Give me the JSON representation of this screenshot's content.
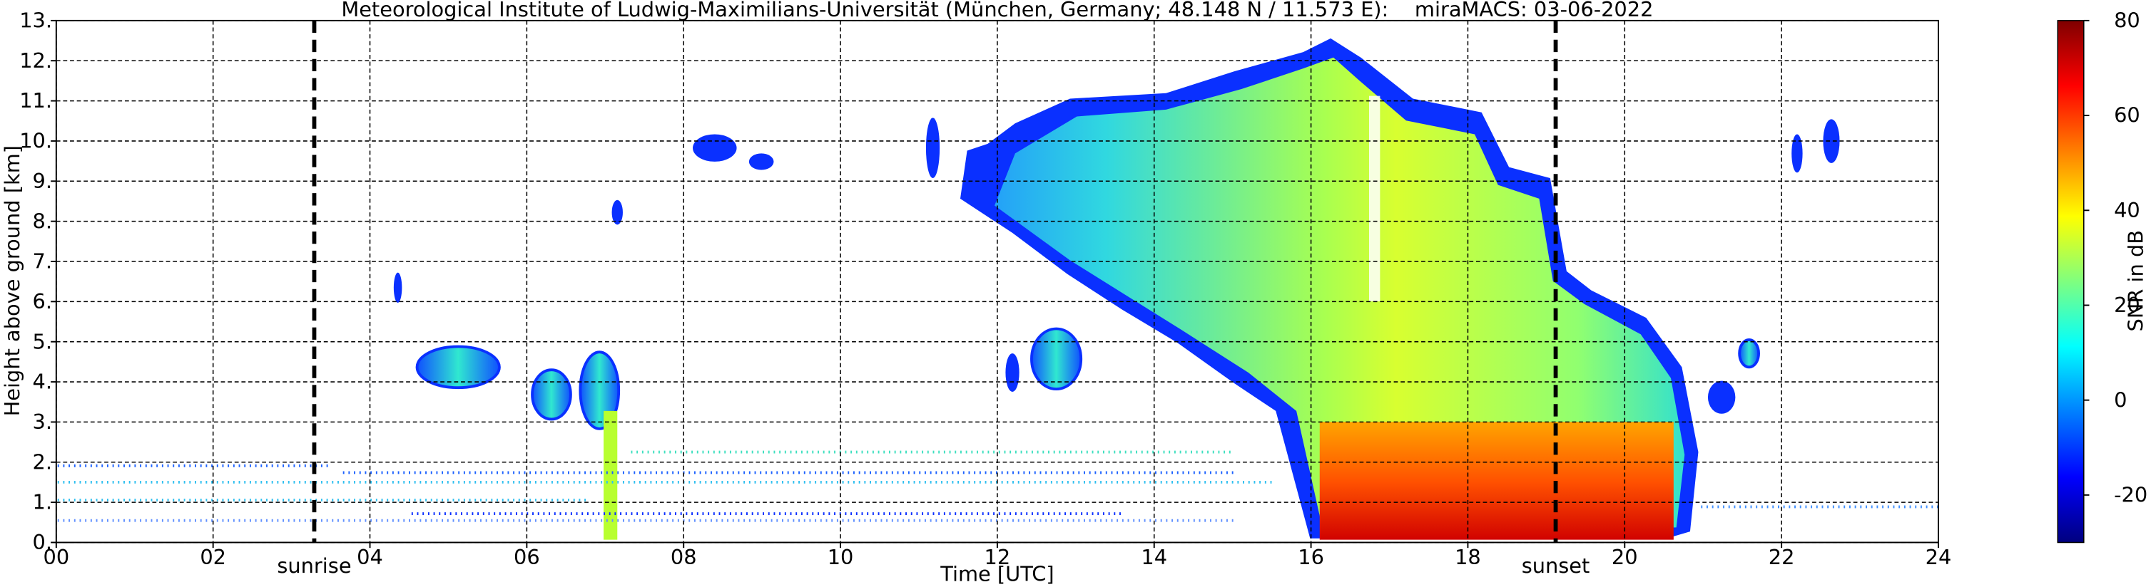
{
  "chart_data": {
    "type": "heatmap",
    "title": "Meteorological Institute of Ludwig-Maximilians-Universität (München, Germany; 48.148 N / 11.573 E):    miraMACS: 03-06-2022",
    "xlabel": "Time [UTC]",
    "ylabel": "Height above ground [km]",
    "xlim": [
      0,
      24
    ],
    "ylim": [
      0,
      13
    ],
    "xticks": [
      {
        "value": 0,
        "label": "00"
      },
      {
        "value": 2,
        "label": "02"
      },
      {
        "value": 4,
        "label": "04"
      },
      {
        "value": 6,
        "label": "06"
      },
      {
        "value": 8,
        "label": "08"
      },
      {
        "value": 10,
        "label": "10"
      },
      {
        "value": 12,
        "label": "12"
      },
      {
        "value": 14,
        "label": "14"
      },
      {
        "value": 16,
        "label": "16"
      },
      {
        "value": 18,
        "label": "18"
      },
      {
        "value": 20,
        "label": "20"
      },
      {
        "value": 22,
        "label": "22"
      },
      {
        "value": 24,
        "label": "24"
      }
    ],
    "yticks": [
      {
        "value": 0,
        "label": "0."
      },
      {
        "value": 1,
        "label": "1."
      },
      {
        "value": 2,
        "label": "2."
      },
      {
        "value": 3,
        "label": "3."
      },
      {
        "value": 4,
        "label": "4."
      },
      {
        "value": 5,
        "label": "5."
      },
      {
        "value": 6,
        "label": "6."
      },
      {
        "value": 7,
        "label": "7."
      },
      {
        "value": 8,
        "label": "8."
      },
      {
        "value": 9,
        "label": "9."
      },
      {
        "value": 10,
        "label": "10."
      },
      {
        "value": 11,
        "label": "11."
      },
      {
        "value": 12,
        "label": "12."
      },
      {
        "value": 13,
        "label": "13."
      }
    ],
    "grid": true,
    "colorbar": {
      "label": "SNR in dB",
      "colormap": "jet",
      "lim": [
        -30,
        80
      ],
      "ticks": [
        -20,
        0,
        20,
        40,
        60,
        80
      ]
    },
    "annotations": [
      {
        "x": 3.29,
        "label": "sunrise"
      },
      {
        "x": 19.12,
        "label": "sunset"
      }
    ]
  }
}
